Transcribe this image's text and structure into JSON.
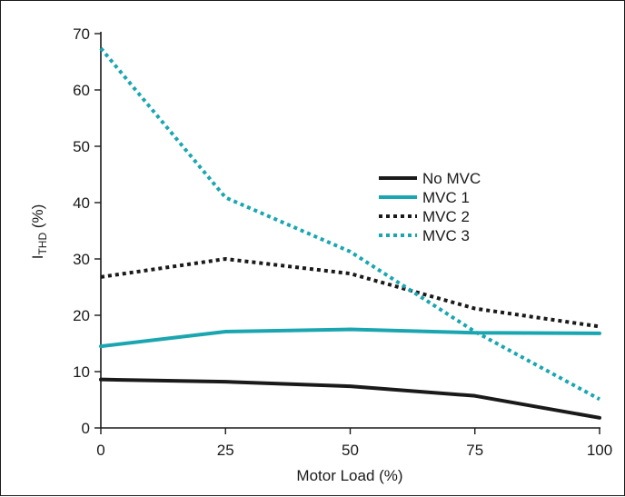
{
  "colors": {
    "black": "#1a1a1a",
    "teal": "#1aa6b0",
    "frame": "#1a1a1a"
  },
  "chart_data": {
    "type": "line",
    "title": "",
    "xlabel": "Motor Load (%)",
    "ylabel": {
      "main": "I",
      "subscript": "THD",
      "suffix": " (%)"
    },
    "xlim": [
      0,
      100
    ],
    "ylim": [
      0,
      70
    ],
    "x_ticks": [
      "0",
      "25",
      "50",
      "75",
      "100"
    ],
    "y_ticks": [
      "0",
      "10",
      "20",
      "30",
      "40",
      "50",
      "60",
      "70"
    ],
    "grid": false,
    "legend_position": "center-right",
    "x": [
      0,
      25,
      50,
      75,
      100
    ],
    "series": [
      {
        "name": "No MVC",
        "values": [
          8.6,
          8.2,
          7.4,
          5.7,
          1.8
        ],
        "color": "#1a1a1a",
        "style": "solid"
      },
      {
        "name": "MVC 1",
        "values": [
          14.5,
          17.1,
          17.5,
          16.9,
          16.8
        ],
        "color": "#1aa6b0",
        "style": "solid"
      },
      {
        "name": "MVC 2",
        "values": [
          26.8,
          30.0,
          27.4,
          21.2,
          18.0
        ],
        "color": "#1a1a1a",
        "style": "dotted"
      },
      {
        "name": "MVC 3",
        "values": [
          67.4,
          40.9,
          31.3,
          17.1,
          5.1
        ],
        "color": "#1aa6b0",
        "style": "dotted"
      }
    ]
  }
}
